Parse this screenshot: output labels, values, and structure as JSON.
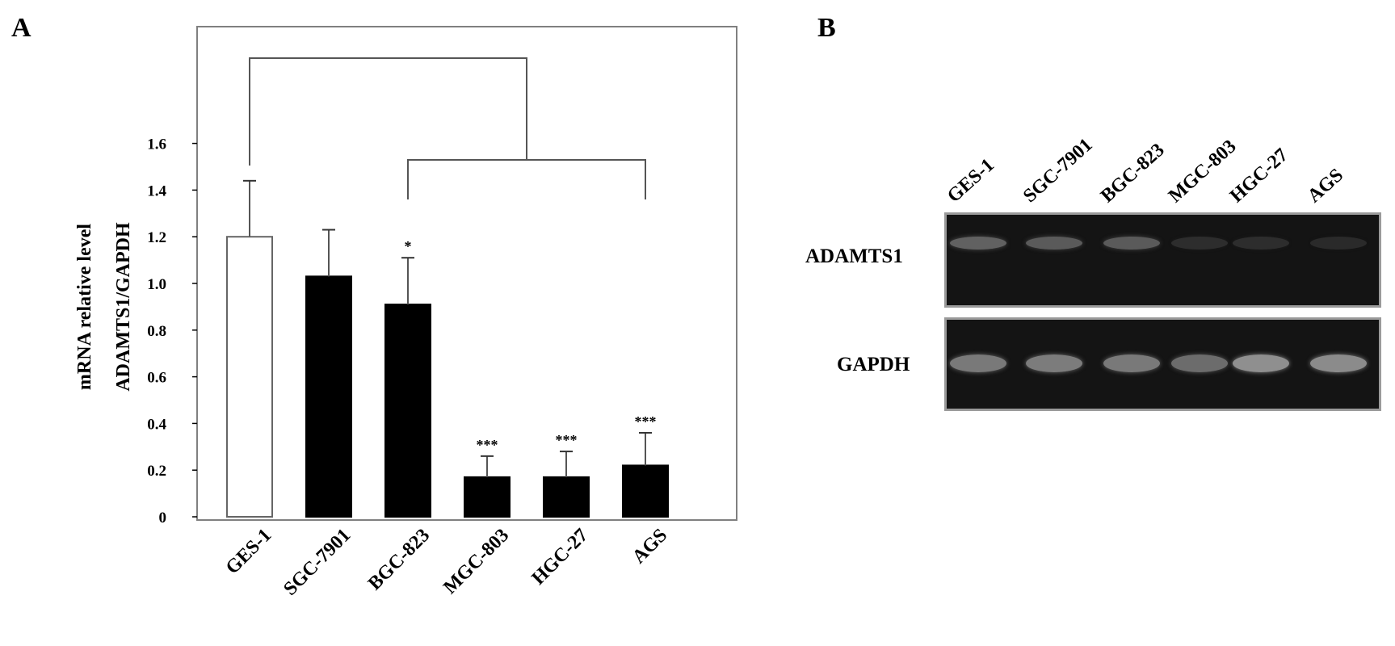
{
  "panels": {
    "a": "A",
    "b": "B"
  },
  "chart_data": {
    "type": "bar",
    "ylabel_lines": [
      "mRNA relative level",
      "ADAMTS1/GAPDH"
    ],
    "xlabel": "",
    "ylim": [
      0,
      1.6
    ],
    "yticks": [
      0,
      0.2,
      0.4,
      0.6,
      0.8,
      1.0,
      1.2,
      1.4,
      1.6
    ],
    "ytick_labels": [
      "0",
      "0.2",
      "0.4",
      "0.6",
      "0.8",
      "1.0",
      "1.2",
      "1.4",
      "1.6"
    ],
    "categories": [
      "GES-1",
      "SGC-7901",
      "BGC-823",
      "MGC-803",
      "HGC-27",
      "AGS"
    ],
    "values": [
      1.2,
      1.03,
      0.91,
      0.17,
      0.17,
      0.22
    ],
    "errors": [
      0.24,
      0.2,
      0.2,
      0.09,
      0.11,
      0.14
    ],
    "fill_colors": [
      "#ffffff",
      "#000000",
      "#000000",
      "#000000",
      "#000000",
      "#000000"
    ],
    "significance": [
      "",
      "",
      "*",
      "***",
      "***",
      "***"
    ],
    "comparison_brackets": "GES-1 vs BGC-823 to AGS",
    "grid": false,
    "legend": "none"
  },
  "gel": {
    "lanes": [
      "GES-1",
      "SGC-7901",
      "BGC-823",
      "MGC-803",
      "HGC-27",
      "AGS"
    ],
    "rows": [
      {
        "name": "ADAMTS1",
        "band_intensity": [
          0.55,
          0.5,
          0.5,
          0.12,
          0.12,
          0.08
        ]
      },
      {
        "name": "GAPDH",
        "band_intensity": [
          0.7,
          0.72,
          0.7,
          0.62,
          0.82,
          0.8
        ]
      }
    ]
  }
}
